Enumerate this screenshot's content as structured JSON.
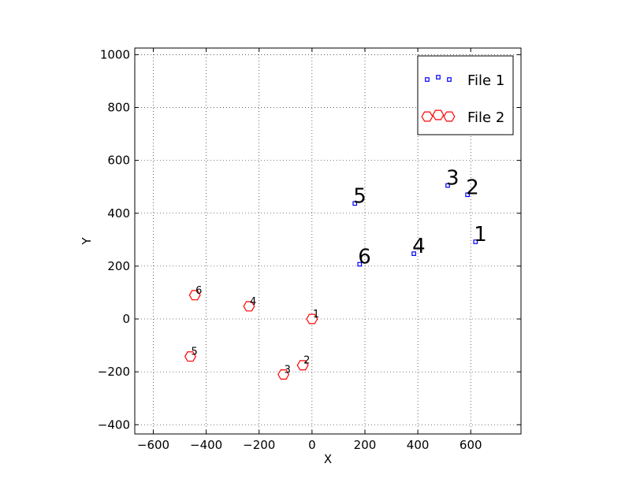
{
  "chart_data": {
    "type": "scatter",
    "xlabel": "X",
    "ylabel": "Y",
    "xlim": [
      -670,
      790
    ],
    "ylim": [
      -435,
      1025
    ],
    "xticks": [
      -600,
      -400,
      -200,
      0,
      200,
      400,
      600
    ],
    "yticks": [
      -400,
      -200,
      0,
      200,
      400,
      600,
      800,
      1000
    ],
    "xtick_labels": [
      "−600",
      "−400",
      "−200",
      "0",
      "200",
      "400",
      "600"
    ],
    "ytick_labels": [
      "−400",
      "−200",
      "0",
      "200",
      "400",
      "600",
      "800",
      "1000"
    ],
    "grid": true,
    "legend_position": "top-right",
    "series": [
      {
        "name": "File 1",
        "marker": "square",
        "color": "#0000ff",
        "points": [
          {
            "label": "1",
            "x": 618,
            "y": 292
          },
          {
            "label": "2",
            "x": 588,
            "y": 470
          },
          {
            "label": "3",
            "x": 513,
            "y": 505
          },
          {
            "label": "4",
            "x": 385,
            "y": 247
          },
          {
            "label": "5",
            "x": 162,
            "y": 437
          },
          {
            "label": "6",
            "x": 180,
            "y": 207
          }
        ]
      },
      {
        "name": "File 2",
        "marker": "hexagon",
        "color": "#ff0000",
        "points": [
          {
            "label": "1",
            "x": 0,
            "y": 0
          },
          {
            "label": "2",
            "x": -35,
            "y": -175
          },
          {
            "label": "3",
            "x": -108,
            "y": -210
          },
          {
            "label": "4",
            "x": -238,
            "y": 48
          },
          {
            "label": "5",
            "x": -460,
            "y": -142
          },
          {
            "label": "6",
            "x": -443,
            "y": 90
          }
        ]
      }
    ]
  }
}
